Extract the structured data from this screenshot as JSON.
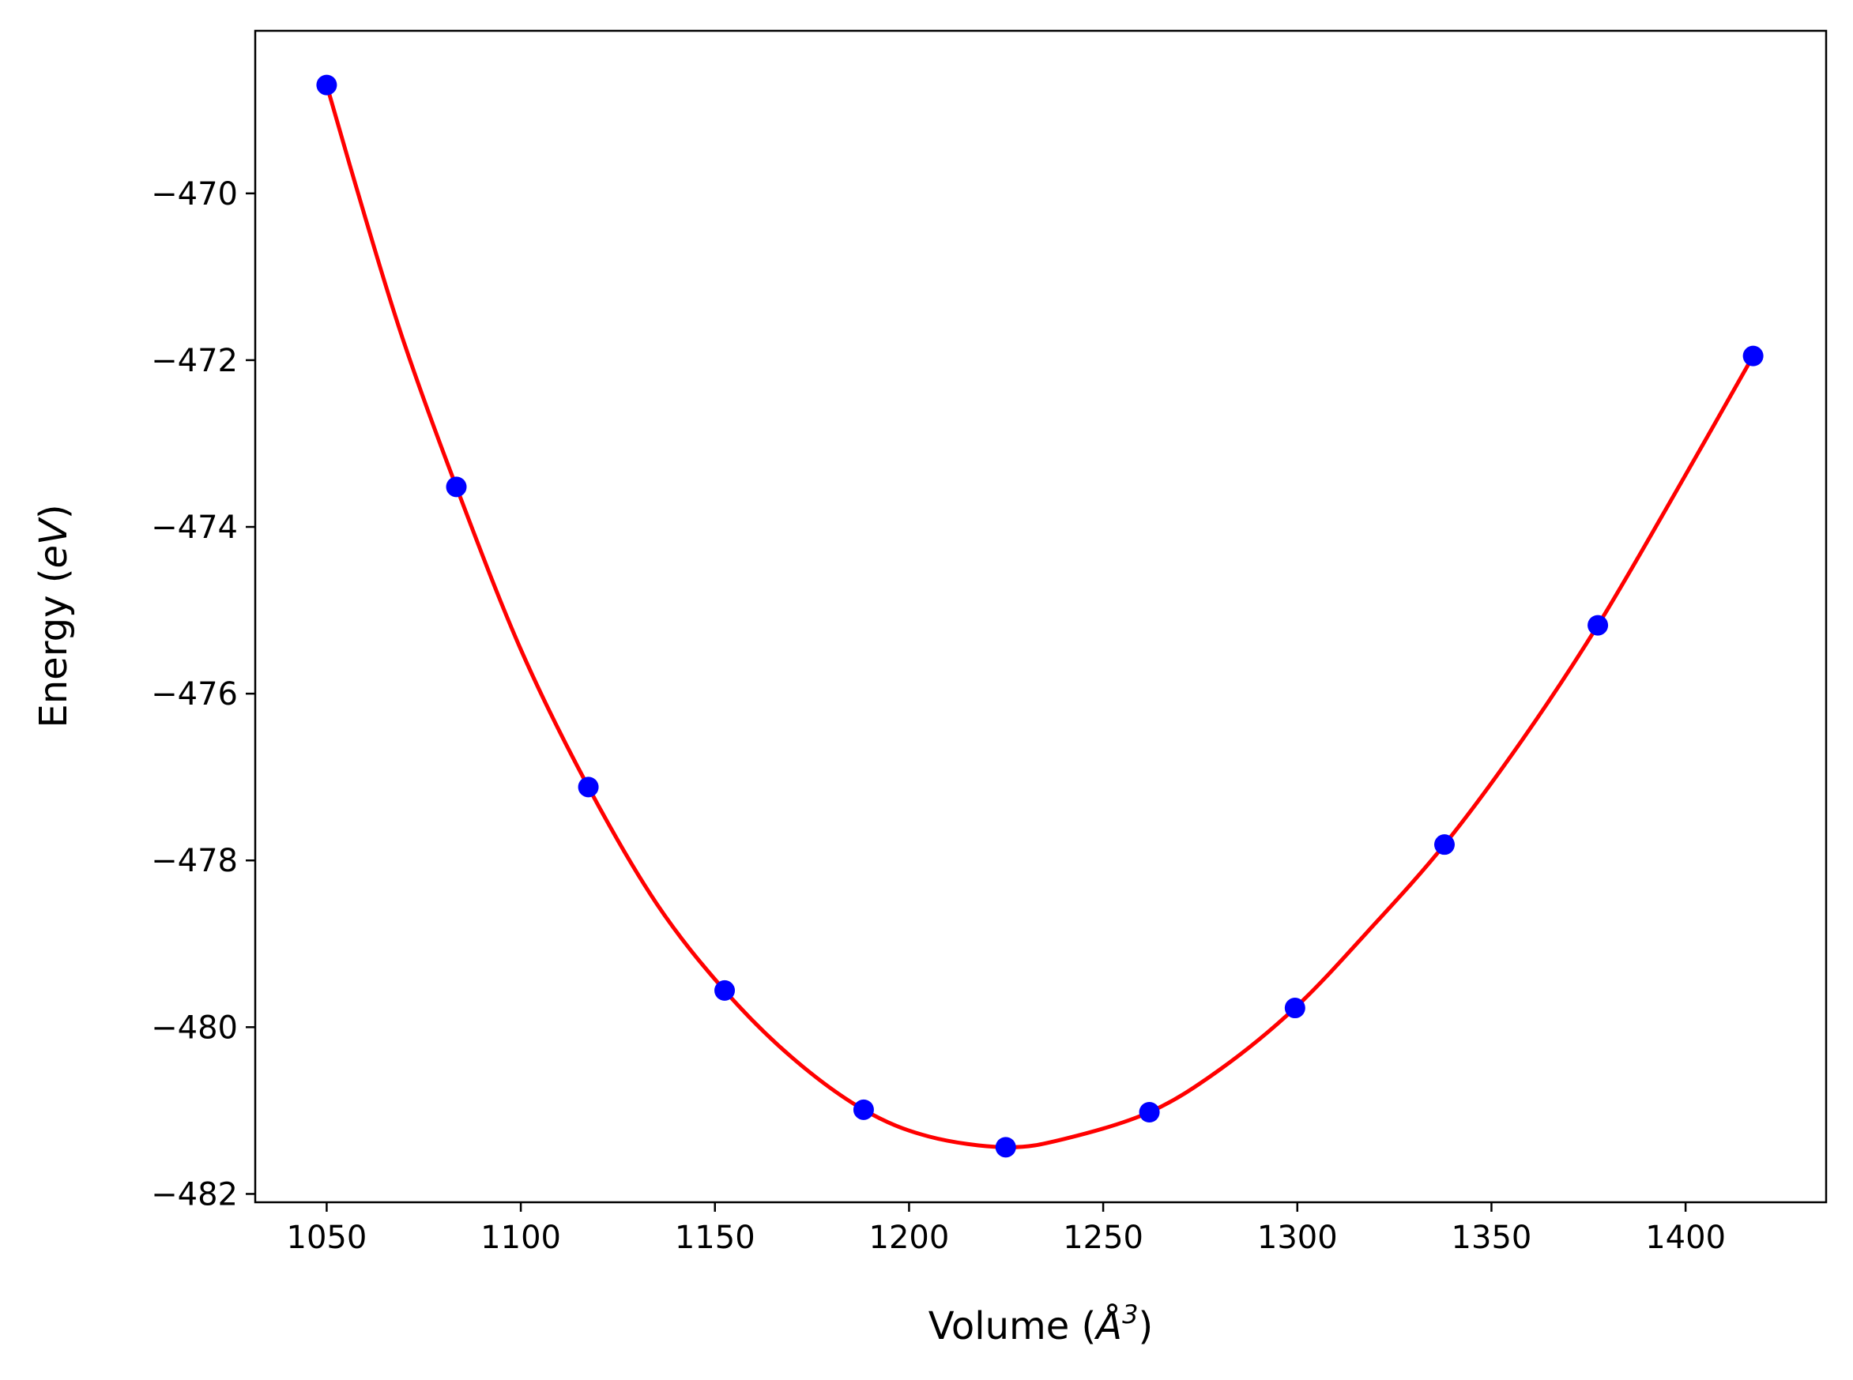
{
  "chart_data": {
    "type": "scatter",
    "title": "",
    "xlabel": {
      "prefix": "Volume (",
      "symbol": "Å",
      "exponent": "3",
      "suffix": ")"
    },
    "ylabel": {
      "prefix": "Energy (",
      "unit": "eV",
      "suffix": ")"
    },
    "xlim": [
      1031.6,
      1436.2
    ],
    "ylim": [
      -482.1,
      -468.05
    ],
    "xticks": [
      1050,
      1100,
      1150,
      1200,
      1250,
      1300,
      1350,
      1400
    ],
    "yticks": [
      -482,
      -480,
      -478,
      -476,
      -474,
      -472,
      -470
    ],
    "xtick_labels": [
      "1050",
      "1100",
      "1150",
      "1200",
      "1250",
      "1300",
      "1350",
      "1400"
    ],
    "ytick_labels": [
      "−482",
      "−480",
      "−478",
      "−476",
      "−474",
      "−472",
      "−470"
    ],
    "grid": false,
    "legend": "none",
    "series": [
      {
        "kind": "points",
        "color": "#0000ff",
        "x": [
          1050.0,
          1083.4,
          1117.4,
          1152.5,
          1188.3,
          1224.9,
          1261.9,
          1299.4,
          1337.9,
          1377.4,
          1417.4
        ],
        "y": [
          -468.7,
          -473.52,
          -477.12,
          -479.56,
          -480.99,
          -481.44,
          -481.02,
          -479.77,
          -477.81,
          -475.18,
          -471.95
        ]
      },
      {
        "kind": "fit-curve",
        "color": "#ff0000",
        "x": [
          1050.0,
          1060.0,
          1070.0,
          1083.4,
          1100.0,
          1117.4,
          1135.0,
          1152.5,
          1170.0,
          1188.3,
          1205.0,
          1224.9,
          1240.0,
          1261.9,
          1280.0,
          1299.4,
          1318.0,
          1337.9,
          1358.0,
          1377.4,
          1397.0,
          1417.4
        ],
        "y": [
          -468.7,
          -470.3,
          -471.8,
          -473.52,
          -475.47,
          -477.12,
          -478.52,
          -479.56,
          -480.37,
          -480.99,
          -481.31,
          -481.44,
          -481.34,
          -481.02,
          -480.51,
          -479.77,
          -478.86,
          -477.81,
          -476.55,
          -475.18,
          -473.62,
          -471.95
        ]
      }
    ]
  }
}
